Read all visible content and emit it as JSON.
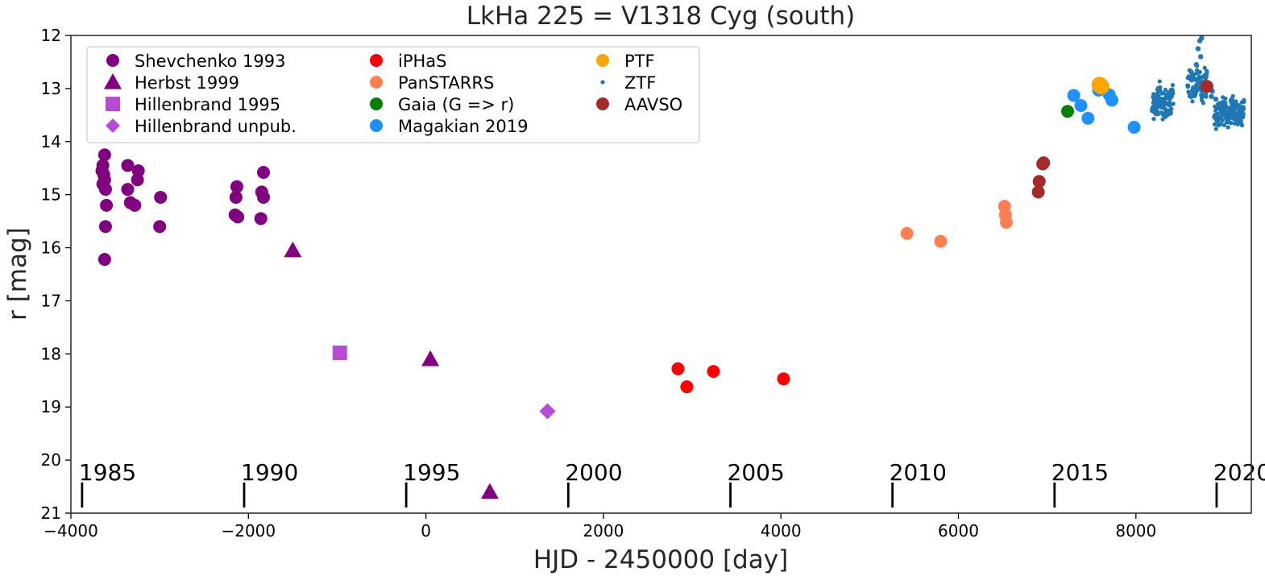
{
  "chart_data": {
    "type": "scatter",
    "title": "LkHa 225 = V1318 Cyg (south)",
    "xlabel": "HJD - 2450000 [day]",
    "ylabel": "r [mag]",
    "xlim": [
      -4000,
      9300
    ],
    "ylim": [
      21,
      12
    ],
    "y_inverted": true,
    "x_ticks": [
      -4000,
      -2000,
      0,
      2000,
      4000,
      6000,
      8000
    ],
    "x_tick_labels": [
      "−4000",
      "−2000",
      "0",
      "2000",
      "4000",
      "6000",
      "8000"
    ],
    "y_ticks": [
      12,
      13,
      14,
      15,
      16,
      17,
      18,
      19,
      20,
      21
    ],
    "y_tick_labels": [
      "12",
      "13",
      "14",
      "15",
      "16",
      "17",
      "18",
      "19",
      "20",
      "21"
    ],
    "grid": false,
    "legend_position": "top-left",
    "year_markers": [
      {
        "label": "1985",
        "x": -3874
      },
      {
        "label": "1990",
        "x": -2048
      },
      {
        "label": "1995",
        "x": -222
      },
      {
        "label": "2000",
        "x": 1604
      },
      {
        "label": "2005",
        "x": 3431
      },
      {
        "label": "2010",
        "x": 5257
      },
      {
        "label": "2015",
        "x": 7083
      },
      {
        "label": "2020",
        "x": 8909
      }
    ],
    "series": [
      {
        "name": "Shevchenko 1993",
        "color": "#800080",
        "marker": "circle",
        "size": 8,
        "points": [
          [
            -3620,
            14.25
          ],
          [
            -3640,
            14.45
          ],
          [
            -3650,
            14.55
          ],
          [
            -3630,
            14.62
          ],
          [
            -3620,
            14.72
          ],
          [
            -3640,
            14.8
          ],
          [
            -3610,
            14.9
          ],
          [
            -3600,
            15.2
          ],
          [
            -3610,
            15.6
          ],
          [
            -3620,
            16.22
          ],
          [
            -3360,
            14.45
          ],
          [
            -3360,
            14.9
          ],
          [
            -3330,
            15.15
          ],
          [
            -3280,
            15.2
          ],
          [
            -3240,
            14.55
          ],
          [
            -3250,
            14.72
          ],
          [
            -2990,
            15.05
          ],
          [
            -3000,
            15.6
          ],
          [
            -2130,
            14.85
          ],
          [
            -2140,
            15.05
          ],
          [
            -2150,
            15.38
          ],
          [
            -2120,
            15.42
          ],
          [
            -1830,
            14.58
          ],
          [
            -1850,
            14.95
          ],
          [
            -1830,
            15.05
          ],
          [
            -1860,
            15.45
          ]
        ]
      },
      {
        "name": "Herbst 1999",
        "color": "#800080",
        "marker": "triangle",
        "size": 11,
        "points": [
          [
            -1500,
            16.05
          ],
          [
            50,
            18.1
          ],
          [
            720,
            20.6
          ]
        ]
      },
      {
        "name": "Hillenbrand 1995",
        "color": "#b84ad8",
        "marker": "square",
        "size": 9,
        "points": [
          [
            -970,
            17.98
          ]
        ]
      },
      {
        "name": "Hillenbrand unpub.",
        "color": "#b84ad8",
        "marker": "diamond",
        "size": 10,
        "points": [
          [
            1370,
            19.08
          ]
        ]
      },
      {
        "name": "iPHaS",
        "color": "#ff0000",
        "marker": "circle",
        "size": 8,
        "points": [
          [
            2840,
            18.28
          ],
          [
            2940,
            18.62
          ],
          [
            3240,
            18.33
          ],
          [
            4030,
            18.47
          ]
        ]
      },
      {
        "name": "PanSTARRS",
        "color": "#ff7f50",
        "marker": "circle",
        "size": 8,
        "points": [
          [
            5420,
            15.73
          ],
          [
            5800,
            15.88
          ],
          [
            6520,
            15.22
          ],
          [
            6530,
            15.38
          ],
          [
            6540,
            15.52
          ]
        ]
      },
      {
        "name": "Gaia (G => r)",
        "color": "#008000",
        "marker": "circle",
        "size": 8,
        "points": [
          [
            7230,
            13.43
          ]
        ]
      },
      {
        "name": "Magakian 2019",
        "color": "#1e90ff",
        "marker": "circle",
        "size": 8,
        "points": [
          [
            7300,
            13.13
          ],
          [
            7380,
            13.32
          ],
          [
            7460,
            13.56
          ],
          [
            7580,
            13.03
          ],
          [
            7700,
            13.12
          ],
          [
            7730,
            13.22
          ],
          [
            7980,
            13.73
          ]
        ]
      },
      {
        "name": "PTF",
        "color": "#ffa500",
        "marker": "circle",
        "size": 10,
        "points": [
          [
            7590,
            12.93
          ],
          [
            7610,
            12.96
          ]
        ]
      },
      {
        "name": "ZTF",
        "color": "#1f77b4",
        "marker": "dot",
        "size": 2.6,
        "segments": [
          {
            "x_start": 8180,
            "x_end": 8420,
            "y_center": 13.25,
            "y_spread": 0.35
          },
          {
            "x_start": 8580,
            "x_end": 8800,
            "y_center": 12.9,
            "y_spread": 0.4
          },
          {
            "x_start": 8880,
            "x_end": 9220,
            "y_center": 13.45,
            "y_spread": 0.3
          }
        ],
        "extra_points": [
          [
            8720,
            12.1
          ],
          [
            8700,
            12.25
          ],
          [
            8730,
            12.4
          ],
          [
            8680,
            12.55
          ],
          [
            8740,
            12.05
          ],
          [
            8830,
            13.0
          ],
          [
            8860,
            13.05
          ],
          [
            8850,
            13.15
          ],
          [
            8900,
            13.2
          ]
        ]
      },
      {
        "name": "AAVSO",
        "color": "#a52a2a",
        "marker": "circle",
        "size": 8,
        "points": [
          [
            6900,
            14.95
          ],
          [
            6910,
            14.75
          ],
          [
            6950,
            14.42
          ],
          [
            6960,
            14.4
          ],
          [
            8800,
            12.96
          ]
        ]
      }
    ]
  }
}
